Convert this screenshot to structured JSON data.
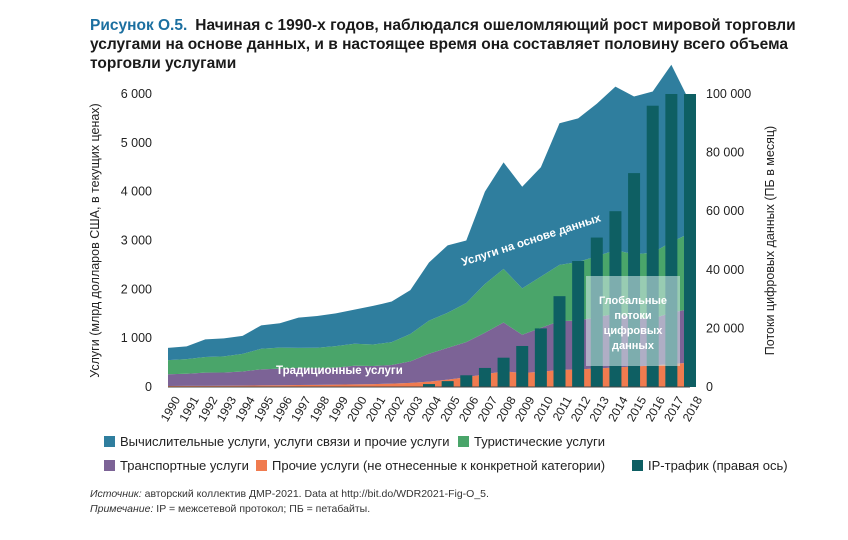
{
  "title": {
    "label": "Рисунок O.5.",
    "text": "Начиная с 1990-х годов, наблюдался ошеломляющий рост мировой торговли услугами на основе данных, и в настоящее время она составляет половину всего объема торговли услугами"
  },
  "chart_data": {
    "type": "area",
    "x": [
      "1990",
      "1991",
      "1992",
      "1993",
      "1994",
      "1995",
      "1996",
      "1997",
      "1998",
      "1999",
      "2000",
      "2001",
      "2002",
      "2003",
      "2004",
      "2005",
      "2006",
      "2007",
      "2008",
      "2009",
      "2010",
      "2011",
      "2012",
      "2013",
      "2014",
      "2015",
      "2016",
      "2017",
      "2018"
    ],
    "ylabel_left": "Услуги (млрд долларов США, в текущих ценах)",
    "ylabel_right": "Потоки цифровых данных (ПБ в месяц)",
    "ylim_left": [
      0,
      6000
    ],
    "ylim_right": [
      0,
      100000
    ],
    "yticks_left": [
      "0",
      "1 000",
      "2 000",
      "3 000",
      "4 000",
      "5 000",
      "6 000"
    ],
    "yticks_right": [
      "0",
      "20 000",
      "40 000",
      "60 000",
      "80 000",
      "100 000"
    ],
    "stacked_series": [
      {
        "name": "Прочие услуги (не отнесенные к конкретной категории)",
        "color": "#f07b4f",
        "values": [
          20,
          22,
          24,
          26,
          28,
          32,
          36,
          40,
          44,
          48,
          55,
          60,
          70,
          85,
          110,
          150,
          200,
          260,
          320,
          290,
          310,
          350,
          360,
          380,
          400,
          420,
          440,
          470,
          500
        ]
      },
      {
        "name": "Транспортные услуги",
        "color": "#7c6396",
        "values": [
          240,
          250,
          270,
          270,
          290,
          330,
          340,
          350,
          340,
          350,
          380,
          370,
          380,
          440,
          570,
          650,
          720,
          850,
          1000,
          780,
          900,
          1000,
          1000,
          1050,
          1100,
          1000,
          960,
          1050,
          1100
        ]
      },
      {
        "name": "Туристические услуги",
        "color": "#4aa56a",
        "values": [
          290,
          300,
          320,
          330,
          360,
          420,
          430,
          410,
          420,
          440,
          450,
          440,
          470,
          560,
          680,
          720,
          800,
          1000,
          1100,
          950,
          1050,
          1150,
          1200,
          1250,
          1300,
          1300,
          1350,
          1450,
          1550
        ]
      },
      {
        "name": "Вычислительные услуги, услуги связи и прочие услуги",
        "color": "#2f7e9e",
        "values": [
          250,
          260,
          360,
          370,
          370,
          480,
          500,
          620,
          650,
          670,
          700,
          790,
          830,
          900,
          1190,
          1380,
          1280,
          1890,
          2180,
          2080,
          2240,
          2900,
          2940,
          3120,
          3350,
          3230,
          3300,
          3630,
          2680
        ]
      }
    ],
    "bar_series": {
      "name": "IP-трафик (правая ось)",
      "color": "#0e5f63",
      "values": [
        0,
        0,
        0,
        0,
        0,
        0,
        0,
        0,
        0,
        0,
        0,
        0,
        0,
        0,
        1000,
        2000,
        4000,
        6500,
        10000,
        14000,
        20000,
        31000,
        43000,
        51000,
        60000,
        73000,
        96000,
        100000,
        100000
      ]
    },
    "annotations": [
      "Услуги на основе данных",
      "Традиционные услуги",
      "Глобальные потоки цифровых данных"
    ],
    "grid": false,
    "legend_position": "bottom"
  },
  "legend": [
    {
      "label": "Вычислительные услуги, услуги связи и прочие услуги",
      "color": "#2f7e9e"
    },
    {
      "label": "Туристические услуги",
      "color": "#4aa56a"
    },
    {
      "label": "Транспортные услуги",
      "color": "#7c6396"
    },
    {
      "label": "Прочие услуги (не отнесенные к конкретной категории)",
      "color": "#f07b4f"
    },
    {
      "label": "IP-трафик (правая ось)",
      "color": "#0e5f63"
    }
  ],
  "notes": {
    "source_label": "Источник:",
    "source_text": " авторский коллектив ДМР-2021. Data at http://bit.do/WDR2021-Fig-O_5.",
    "note_label": "Примечание:",
    "note_text": " IP = межсетевой протокол; ПБ = петабайты."
  }
}
